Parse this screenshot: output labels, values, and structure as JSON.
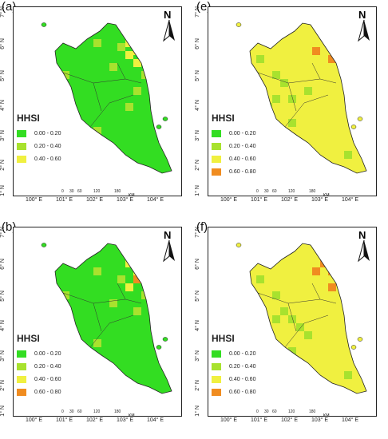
{
  "legend_title": "HHSI",
  "lat_labels": [
    "7° N",
    "6° N",
    "5° N",
    "4° N",
    "3° N",
    "2° N",
    "1° N"
  ],
  "lon_labels": [
    "100° E",
    "101° E",
    "102° E",
    "103° E",
    "104° E"
  ],
  "scale": {
    "ticks": [
      "0",
      "30",
      "60",
      "120",
      "180"
    ],
    "unit": "KM"
  },
  "north_label": "N",
  "colors": {
    "c1": "#33dd22",
    "c2": "#a8e22e",
    "c3": "#f0f040",
    "c4": "#f08c20"
  },
  "panels": [
    {
      "label": "(a)",
      "legend": [
        "0.00 - 0.20",
        "0.20 - 0.40",
        "0.40 - 0.60"
      ]
    },
    {
      "label": "(e)",
      "legend": [
        "0.00 - 0.20",
        "0.20 - 0.40",
        "0.40 - 0.60",
        "0.60 - 0.80"
      ]
    },
    {
      "label": "(b)",
      "legend": [
        "0.00 - 0.20",
        "0.20 - 0.40",
        "0.40 - 0.60",
        "0.60 - 0.80"
      ]
    },
    {
      "label": "(f)",
      "legend": [
        "0.00 - 0.20",
        "0.20 - 0.40",
        "0.40 - 0.60",
        "0.60 - 0.80"
      ]
    }
  ]
}
